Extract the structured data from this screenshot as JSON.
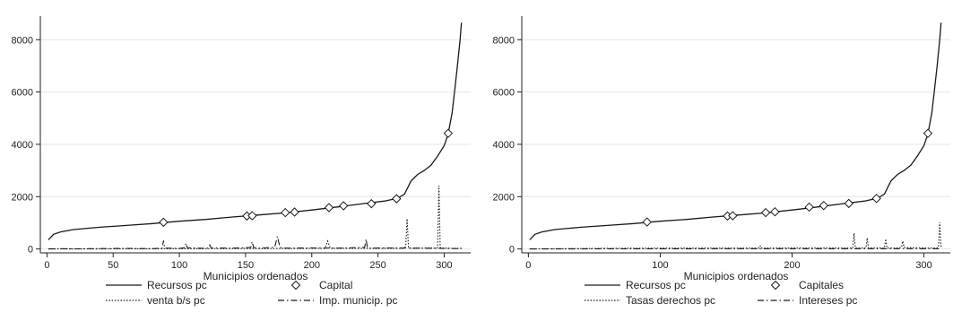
{
  "chart_data": [
    {
      "type": "line",
      "xlabel": "Municipios ordenados",
      "ylabel": "",
      "xlim": [
        -5,
        320
      ],
      "ylim": [
        -150,
        8900
      ],
      "xticks": [
        0,
        50,
        100,
        150,
        200,
        250,
        300
      ],
      "yticks": [
        0,
        2000,
        4000,
        6000,
        8000
      ],
      "grid": true,
      "legend_position": "bottom",
      "series": [
        {
          "name": "Recursos pc",
          "style": "solid",
          "x": [
            1,
            5,
            10,
            20,
            40,
            60,
            80,
            100,
            120,
            140,
            160,
            180,
            200,
            220,
            240,
            255,
            265,
            270,
            275,
            280,
            285,
            290,
            295,
            300,
            303,
            306,
            308,
            310,
            312,
            313
          ],
          "y": [
            350,
            560,
            650,
            740,
            830,
            900,
            970,
            1060,
            1130,
            1220,
            1300,
            1380,
            1490,
            1610,
            1740,
            1830,
            1940,
            2100,
            2600,
            2850,
            3000,
            3200,
            3550,
            3950,
            4400,
            5200,
            6100,
            7000,
            8000,
            8650
          ]
        },
        {
          "name": "Capital",
          "style": "marker-diamond",
          "x": [
            88,
            151,
            155,
            180,
            187,
            213,
            224,
            245,
            264,
            303
          ],
          "y": [
            1020,
            1260,
            1270,
            1390,
            1410,
            1580,
            1650,
            1730,
            1920,
            4420
          ]
        },
        {
          "name": "venta b/s  pc",
          "style": "dotted",
          "x": [
            1,
            50,
            100,
            150,
            200,
            210,
            212,
            214,
            250,
            268,
            270,
            271,
            272,
            273,
            274,
            276,
            280,
            290,
            294,
            295,
            296,
            297,
            298,
            300,
            310,
            313
          ],
          "y": [
            0,
            5,
            10,
            15,
            20,
            20,
            300,
            20,
            25,
            20,
            30,
            100,
            1150,
            80,
            30,
            20,
            30,
            40,
            30,
            60,
            2420,
            60,
            40,
            30,
            20,
            30
          ]
        },
        {
          "name": "Imp. municip. pc",
          "style": "dashdot",
          "x": [
            1,
            10,
            20,
            40,
            60,
            80,
            87,
            88,
            89,
            100,
            104,
            105,
            106,
            120,
            122,
            123,
            124,
            140,
            150,
            154,
            155,
            156,
            160,
            172,
            173,
            174,
            176,
            180,
            200,
            220,
            240,
            241,
            242,
            243,
            260,
            280,
            300,
            313
          ],
          "y": [
            0,
            10,
            5,
            15,
            20,
            10,
            30,
            320,
            30,
            20,
            50,
            220,
            50,
            20,
            40,
            150,
            40,
            30,
            50,
            60,
            280,
            60,
            30,
            60,
            260,
            480,
            60,
            30,
            40,
            30,
            60,
            380,
            60,
            30,
            40,
            30,
            20,
            10
          ]
        }
      ]
    },
    {
      "type": "line",
      "xlabel": "Municipios ordenados",
      "ylabel": "",
      "xlim": [
        -5,
        320
      ],
      "ylim": [
        -150,
        8900
      ],
      "xticks": [
        0,
        100,
        200,
        300
      ],
      "yticks": [
        0,
        2000,
        4000,
        6000,
        8000
      ],
      "grid": true,
      "legend_position": "bottom",
      "series": [
        {
          "name": "Recursos pc",
          "style": "solid",
          "x": [
            1,
            5,
            10,
            20,
            40,
            60,
            80,
            100,
            120,
            140,
            160,
            180,
            200,
            220,
            240,
            255,
            265,
            270,
            275,
            280,
            285,
            290,
            295,
            300,
            303,
            306,
            308,
            310,
            312,
            313
          ],
          "y": [
            350,
            560,
            650,
            740,
            830,
            900,
            970,
            1060,
            1130,
            1220,
            1300,
            1380,
            1490,
            1610,
            1740,
            1830,
            1940,
            2100,
            2600,
            2850,
            3000,
            3200,
            3550,
            3950,
            4400,
            5200,
            6100,
            7000,
            8000,
            8650
          ]
        },
        {
          "name": "Capitales",
          "style": "marker-diamond",
          "x": [
            90,
            151,
            155,
            180,
            187,
            213,
            224,
            243,
            264,
            303
          ],
          "y": [
            1030,
            1260,
            1270,
            1390,
            1420,
            1600,
            1660,
            1740,
            1930,
            4420
          ]
        },
        {
          "name": "Tasas derechos pc",
          "style": "dotted",
          "x": [
            1,
            50,
            100,
            150,
            175,
            176,
            177,
            200,
            230,
            246,
            247,
            248,
            250,
            256,
            257,
            258,
            270,
            271,
            272,
            280,
            283,
            284,
            285,
            300,
            310,
            311,
            312,
            313
          ],
          "y": [
            0,
            20,
            30,
            30,
            30,
            110,
            30,
            40,
            40,
            40,
            600,
            40,
            40,
            40,
            420,
            40,
            40,
            380,
            40,
            40,
            60,
            300,
            60,
            40,
            40,
            60,
            1020,
            60
          ]
        },
        {
          "name": "Intereses pc",
          "style": "dashdot",
          "x": [
            1,
            50,
            100,
            150,
            200,
            250,
            300,
            313
          ],
          "y": [
            0,
            5,
            5,
            10,
            10,
            10,
            10,
            10
          ]
        }
      ]
    }
  ]
}
